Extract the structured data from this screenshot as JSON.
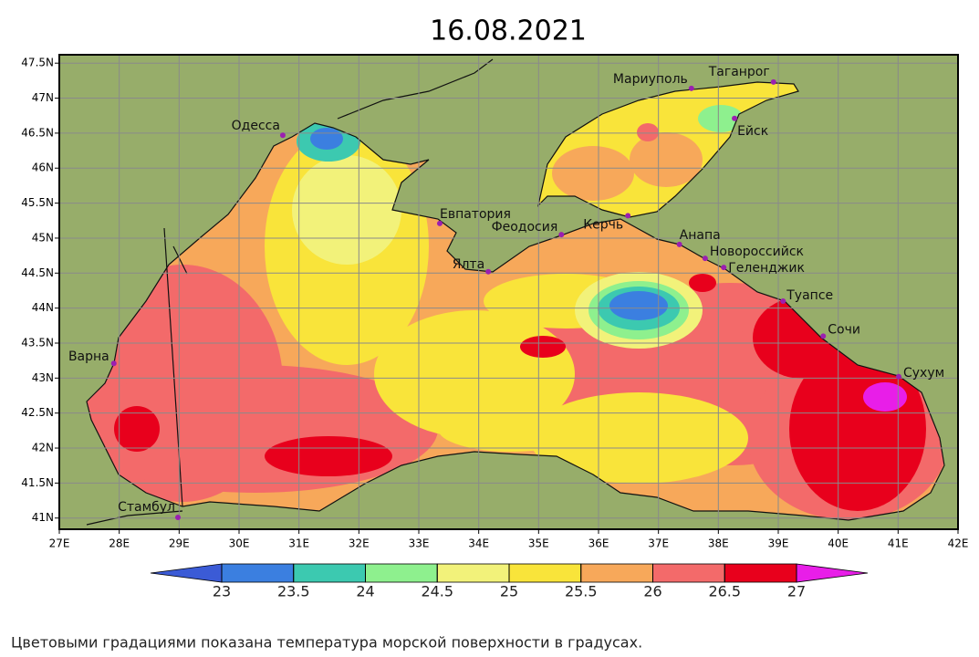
{
  "title": "16.08.2021",
  "map": {
    "xlim": [
      27,
      42
    ],
    "ylim": [
      40.84,
      47.62
    ],
    "xticks": [
      {
        "value": 27,
        "label": "27E"
      },
      {
        "value": 28,
        "label": "28E"
      },
      {
        "value": 29,
        "label": "29E"
      },
      {
        "value": 30,
        "label": "30E"
      },
      {
        "value": 31,
        "label": "31E"
      },
      {
        "value": 32,
        "label": "32E"
      },
      {
        "value": 33,
        "label": "33E"
      },
      {
        "value": 34,
        "label": "34E"
      },
      {
        "value": 35,
        "label": "35E"
      },
      {
        "value": 36,
        "label": "36E"
      },
      {
        "value": 37,
        "label": "37E"
      },
      {
        "value": 38,
        "label": "38E"
      },
      {
        "value": 39,
        "label": "39E"
      },
      {
        "value": 40,
        "label": "40E"
      },
      {
        "value": 41,
        "label": "41E"
      },
      {
        "value": 42,
        "label": "42E"
      }
    ],
    "yticks": [
      {
        "value": 41,
        "label": "41N"
      },
      {
        "value": 41.5,
        "label": "41.5N"
      },
      {
        "value": 42,
        "label": "42N"
      },
      {
        "value": 42.5,
        "label": "42.5N"
      },
      {
        "value": 43,
        "label": "43N"
      },
      {
        "value": 43.5,
        "label": "43.5N"
      },
      {
        "value": 44,
        "label": "44N"
      },
      {
        "value": 44.5,
        "label": "44.5N"
      },
      {
        "value": 45,
        "label": "45N"
      },
      {
        "value": 45.5,
        "label": "45.5N"
      },
      {
        "value": 46,
        "label": "46N"
      },
      {
        "value": 46.5,
        "label": "46.5N"
      },
      {
        "value": 47,
        "label": "47N"
      },
      {
        "value": 47.5,
        "label": "47.5N"
      }
    ],
    "cities": [
      {
        "name": "Одесса",
        "lon": 30.73,
        "lat": 46.47
      },
      {
        "name": "Мариуполь",
        "lon": 37.55,
        "lat": 47.14
      },
      {
        "name": "Таганрог",
        "lon": 38.92,
        "lat": 47.23
      },
      {
        "name": "Ейск",
        "lon": 38.27,
        "lat": 46.71
      },
      {
        "name": "Евпатория",
        "lon": 33.35,
        "lat": 45.21
      },
      {
        "name": "Феодосия",
        "lon": 35.38,
        "lat": 45.05
      },
      {
        "name": "Керчь",
        "lon": 36.49,
        "lat": 45.32
      },
      {
        "name": "Анапа",
        "lon": 37.35,
        "lat": 44.91
      },
      {
        "name": "Новороссийск",
        "lon": 37.78,
        "lat": 44.71
      },
      {
        "name": "Геленджик",
        "lon": 38.09,
        "lat": 44.58
      },
      {
        "name": "Ялта",
        "lon": 34.16,
        "lat": 44.52
      },
      {
        "name": "Туапсе",
        "lon": 39.08,
        "lat": 44.1
      },
      {
        "name": "Сочи",
        "lon": 39.75,
        "lat": 43.6
      },
      {
        "name": "Сухум",
        "lon": 41.01,
        "lat": 43.02
      },
      {
        "name": "Варна",
        "lon": 27.91,
        "lat": 43.21
      },
      {
        "name": "Стамбул",
        "lon": 28.98,
        "lat": 41.01
      }
    ]
  },
  "colorbar": {
    "ticks": [
      23,
      23.5,
      24,
      24.5,
      25,
      25.5,
      26,
      26.5,
      27
    ],
    "colors": [
      "#3b7fe0",
      "#3cc9b0",
      "#8ef08e",
      "#f2f27a",
      "#f9e43a",
      "#f7a85a",
      "#f36a6a",
      "#e8001c"
    ],
    "under_color": "#3b5bd6",
    "over_color": "#e81ee8"
  },
  "caption": "Цветовыми градациями показана температура морской поверхности в градусах."
}
